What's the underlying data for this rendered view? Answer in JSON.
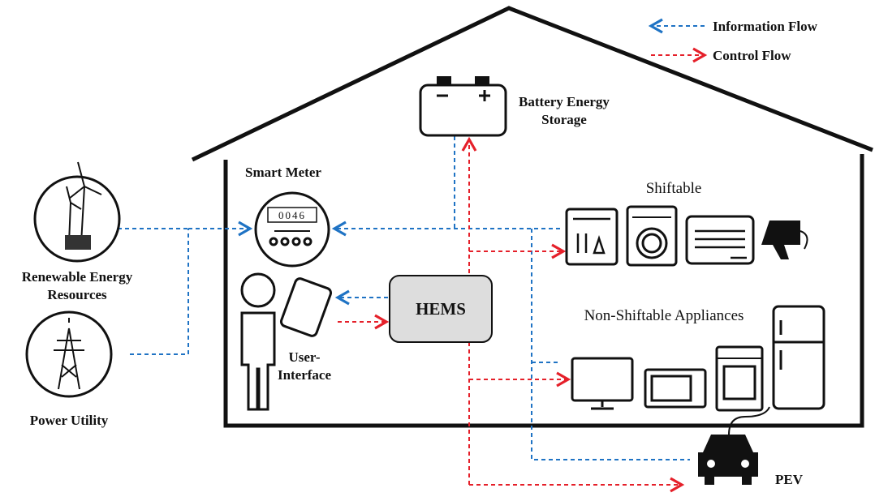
{
  "legend": {
    "items": [
      {
        "label": "Information Flow"
      },
      {
        "label": "Control Flow"
      }
    ]
  },
  "nodes": {
    "battery": {
      "label": [
        "Battery Energy",
        "Storage"
      ]
    },
    "smart_meter": {
      "label": "Smart Meter",
      "reading": "0046"
    },
    "shiftable": {
      "label": "Shiftable"
    },
    "renewable": {
      "label": [
        "Renewable Energy",
        "Resources"
      ]
    },
    "hems": {
      "label": "HEMS"
    },
    "user_interface": {
      "label": [
        "User-",
        "Interface"
      ]
    },
    "non_shiftable": {
      "label": "Non-Shiftable Appliances"
    },
    "power_utility": {
      "label": "Power Utility"
    },
    "pev": {
      "label": "PEV"
    }
  }
}
